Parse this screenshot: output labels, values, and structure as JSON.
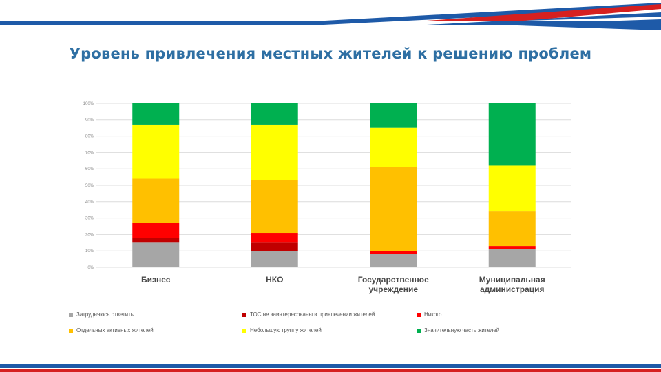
{
  "slide": {
    "title": "Уровень привлечения местных жителей к решению проблем"
  },
  "chart_data": {
    "type": "bar",
    "stacked": true,
    "percent_stacked": true,
    "categories": [
      "Бизнес",
      "НКО",
      "Государственное учреждение",
      "Муниципальная администрация"
    ],
    "category_lines": [
      [
        "Бизнес"
      ],
      [
        "НКО"
      ],
      [
        "Государственное",
        "учреждение"
      ],
      [
        "Муниципальная",
        "администрация"
      ]
    ],
    "y_ticks": [
      "0%",
      "10%",
      "20%",
      "30%",
      "40%",
      "50%",
      "60%",
      "70%",
      "80%",
      "90%",
      "100%"
    ],
    "ylim": [
      0,
      100
    ],
    "grid": true,
    "legend_position": "bottom",
    "series": [
      {
        "name": "Затрудняюсь ответить",
        "color": "#a6a6a6",
        "values": [
          15,
          10,
          8,
          11
        ]
      },
      {
        "name": "ТОС не заинтересованы в привлечении жителей",
        "color": "#c00000",
        "values": [
          3,
          5,
          0,
          0
        ]
      },
      {
        "name": "Никого",
        "color": "#ff0000",
        "values": [
          9,
          6,
          2,
          2
        ]
      },
      {
        "name": "Отдельных активных жителей",
        "color": "#ffc000",
        "values": [
          27,
          32,
          51,
          21
        ]
      },
      {
        "name": "Небольшую группу жителей",
        "color": "#ffff00",
        "values": [
          33,
          34,
          24,
          28
        ]
      },
      {
        "name": "Значительную часть жителей",
        "color": "#00b050",
        "values": [
          13,
          13,
          15,
          38
        ]
      }
    ]
  }
}
